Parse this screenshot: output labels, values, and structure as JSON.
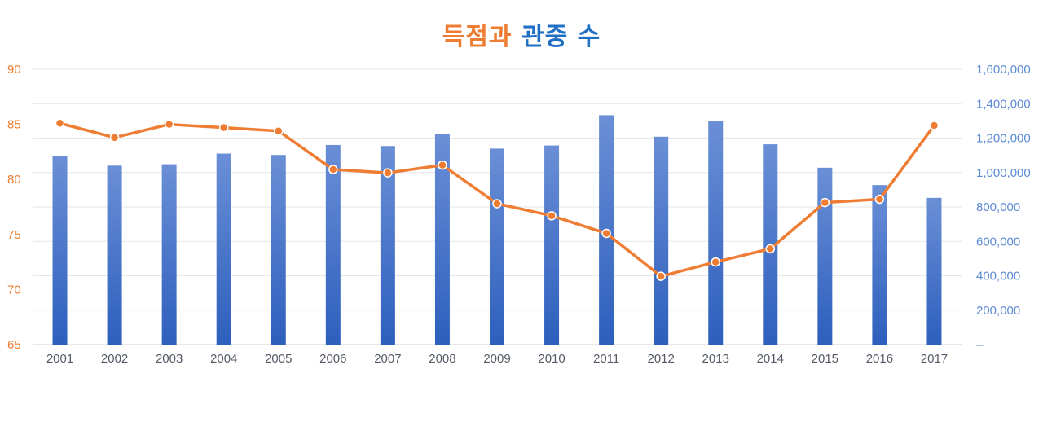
{
  "chart_data": {
    "type": "bar+line",
    "title_part1": "득점과",
    "title_part2": "관중 수",
    "categories": [
      "2001",
      "2002",
      "2003",
      "2004",
      "2005",
      "2006",
      "2007",
      "2008",
      "2009",
      "2010",
      "2011",
      "2012",
      "2013",
      "2014",
      "2015",
      "2016",
      "2017"
    ],
    "series": [
      {
        "kind": "bar",
        "axis": "right",
        "color": "#3f73d0",
        "values": [
          1097000,
          1040000,
          1048000,
          1110000,
          1102000,
          1160000,
          1154000,
          1226000,
          1139000,
          1157000,
          1333000,
          1208000,
          1300000,
          1164000,
          1028000,
          927000,
          853000
        ]
      },
      {
        "kind": "line",
        "axis": "left",
        "color": "#ee7d33",
        "values": [
          85.1,
          83.8,
          85.0,
          84.7,
          84.4,
          80.9,
          80.6,
          81.3,
          77.8,
          76.7,
          75.1,
          71.2,
          72.5,
          73.7,
          77.9,
          78.2,
          84.9
        ]
      }
    ],
    "y_left": {
      "min": 65,
      "max": 90,
      "ticks": [
        "90",
        "85",
        "80",
        "75",
        "70",
        "65"
      ],
      "color": "#ee7d33"
    },
    "y_right": {
      "min": 0,
      "max": 1600000,
      "ticks": [
        "1,600,000",
        "1,400,000",
        "1,200,000",
        "1,000,000",
        "800,000",
        "600,000",
        "400,000",
        "200,000",
        "–"
      ],
      "color": "#5c8bd6"
    },
    "grid": true
  }
}
